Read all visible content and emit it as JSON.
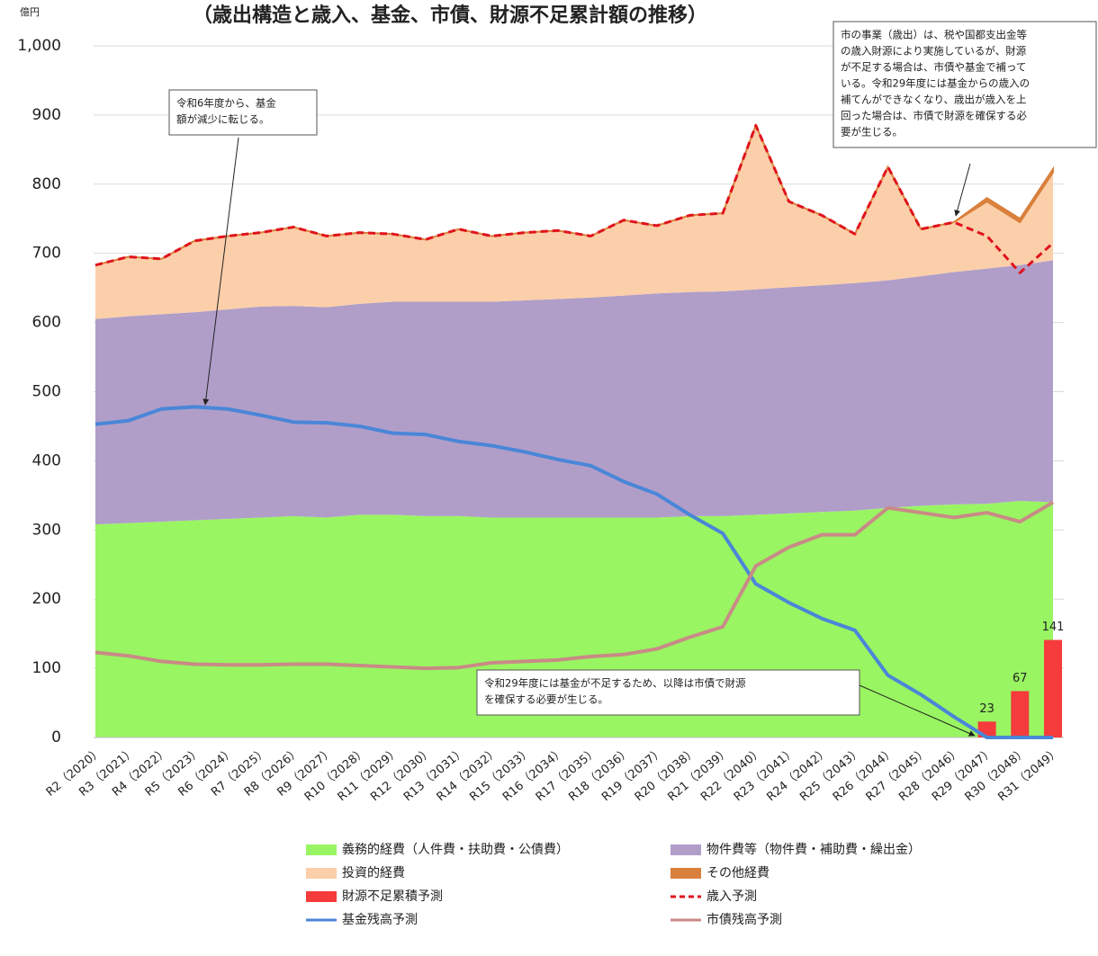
{
  "chart_data": {
    "type": "area",
    "unit": "億円",
    "title": "（歳出構造と歳入、基金、市債、財源不足累計額の推移）",
    "categories": [
      "R2（2020）",
      "R3（2021）",
      "R4（2022）",
      "R5（2023）",
      "R6（2024）",
      "R7（2025）",
      "R8（2026）",
      "R9（2027）",
      "R10（2028）",
      "R11（2029）",
      "R12（2030）",
      "R13（2031）",
      "R14（2032）",
      "R15（2033）",
      "R16（2034）",
      "R17（2035）",
      "R18（2036）",
      "R19（2037）",
      "R20（2038）",
      "R21（2039）",
      "R22（2040）",
      "R23（2041）",
      "R24（2042）",
      "R25（2043）",
      "R26（2044）",
      "R27（2045）",
      "R28（2046）",
      "R29（2047）",
      "R30（2048）",
      "R31（2049）"
    ],
    "ylim": [
      0,
      1000
    ],
    "yticks": [
      0,
      100,
      200,
      300,
      400,
      500,
      600,
      700,
      800,
      900,
      {
        "value": 1000,
        "label": "1,000"
      }
    ],
    "grid": true,
    "series": [
      {
        "name": "義務的経費（人件費・扶助費・公債費）",
        "type": "area",
        "color": "#99f562",
        "values": [
          308,
          310,
          312,
          314,
          316,
          318,
          320,
          318,
          322,
          322,
          320,
          320,
          318,
          318,
          318,
          318,
          318,
          318,
          320,
          320,
          322,
          324,
          326,
          328,
          332,
          335,
          337,
          338,
          342,
          340
        ]
      },
      {
        "name": "物件費等（物件費・補助費・繰出金）",
        "type": "area",
        "color": "#b09ec9",
        "values": [
          297,
          299,
          300,
          301,
          303,
          305,
          304,
          304,
          305,
          308,
          310,
          310,
          312,
          314,
          316,
          318,
          321,
          324,
          324,
          325,
          326,
          327,
          328,
          329,
          329,
          332,
          336,
          340,
          341,
          350
        ]
      },
      {
        "name": "投資的経費",
        "type": "area",
        "color": "#fbcfa9",
        "values": [
          78,
          86,
          80,
          103,
          106,
          107,
          114,
          103,
          103,
          98,
          90,
          105,
          95,
          98,
          99,
          89,
          109,
          98,
          111,
          113,
          237,
          124,
          101,
          71,
          164,
          68,
          72,
          97,
          62,
          127
        ]
      },
      {
        "name": "その他経費",
        "type": "area",
        "color": "#d9803c",
        "values": [
          0,
          0,
          0,
          0,
          0,
          0,
          0,
          0,
          0,
          0,
          0,
          0,
          0,
          0,
          0,
          0,
          0,
          0,
          0,
          0,
          0,
          0,
          0,
          0,
          0,
          0,
          0,
          5,
          5,
          5
        ]
      },
      {
        "name": "財源不足累積予測",
        "type": "bar",
        "color": "#f53b3b",
        "values": [
          null,
          null,
          null,
          null,
          null,
          null,
          null,
          null,
          null,
          null,
          null,
          null,
          null,
          null,
          null,
          null,
          null,
          null,
          null,
          null,
          null,
          null,
          null,
          null,
          null,
          null,
          null,
          23,
          67,
          141
        ]
      },
      {
        "name": "歳入予測",
        "type": "line",
        "dashed": true,
        "color": "#e0121c",
        "values": [
          683,
          695,
          692,
          718,
          725,
          730,
          738,
          725,
          730,
          728,
          720,
          735,
          725,
          730,
          733,
          725,
          748,
          740,
          755,
          758,
          885,
          775,
          755,
          728,
          825,
          735,
          745,
          725,
          672,
          715
        ]
      },
      {
        "name": "基金残高予測",
        "type": "line",
        "color": "#4a86d8",
        "values": [
          453,
          458,
          475,
          478,
          475,
          466,
          456,
          455,
          450,
          440,
          438,
          428,
          422,
          413,
          402,
          393,
          370,
          352,
          322,
          295,
          222,
          195,
          172,
          155,
          90,
          62,
          30,
          0,
          0,
          0
        ]
      },
      {
        "name": "市債残高予測",
        "type": "line",
        "color": "#c98a86",
        "values": [
          123,
          118,
          110,
          106,
          105,
          105,
          106,
          106,
          104,
          102,
          100,
          101,
          108,
          110,
          112,
          117,
          120,
          128,
          145,
          160,
          248,
          275,
          293,
          293,
          332,
          325,
          318,
          325,
          312,
          340
        ]
      }
    ],
    "annotations": [
      {
        "lines": [
          "令和6年度から、基金",
          "額が減少に転じる。"
        ]
      },
      {
        "lines": [
          "市の事業（歳出）は、税や国都支出金等",
          "の歳入財源により実施しているが、財源",
          "が不足する場合は、市債や基金で補って",
          "いる。令和29年度には基金からの歳入の",
          "補てんができなくなり、歳出が歳入を上",
          "回った場合は、市債で財源を確保する必",
          "要が生じる。"
        ]
      },
      {
        "lines": [
          "令和29年度には基金が不足するため、以降は市債で財源",
          "を確保する必要が生じる。"
        ]
      }
    ]
  }
}
